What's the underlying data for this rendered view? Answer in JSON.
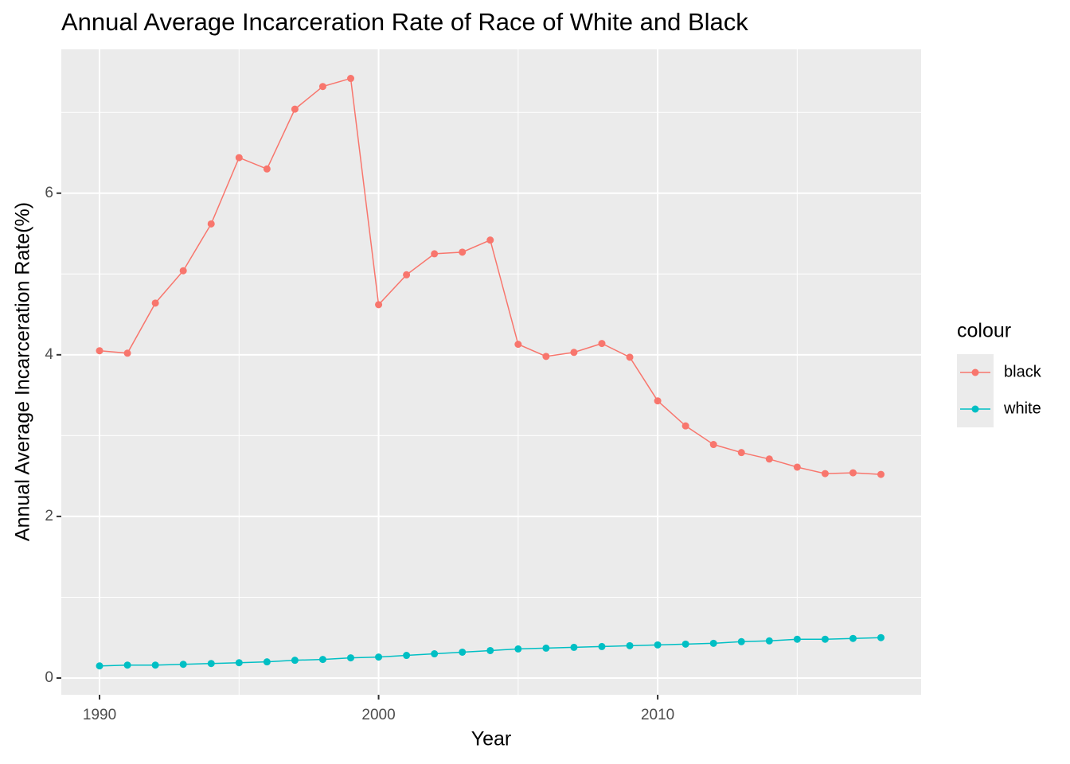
{
  "chart_data": {
    "type": "line",
    "title": "Annual Average Incarceration Rate of Race of White and Black",
    "x_label": "Year",
    "y_label": "Annual Average Incarceration Rate(%)",
    "legend_title": "colour",
    "x": [
      1990,
      1991,
      1992,
      1993,
      1994,
      1995,
      1996,
      1997,
      1998,
      1999,
      2000,
      2001,
      2002,
      2003,
      2004,
      2005,
      2006,
      2007,
      2008,
      2009,
      2010,
      2011,
      2012,
      2013,
      2014,
      2015,
      2016,
      2017,
      2018
    ],
    "series": [
      {
        "name": "black",
        "color": "#f8766d",
        "values": [
          4.05,
          4.02,
          4.64,
          5.04,
          5.62,
          6.44,
          6.3,
          7.04,
          7.32,
          7.42,
          4.62,
          4.99,
          5.25,
          5.27,
          5.42,
          4.13,
          3.98,
          4.03,
          4.14,
          3.97,
          3.43,
          3.12,
          2.89,
          2.79,
          2.71,
          2.61,
          2.53,
          2.54,
          2.52
        ]
      },
      {
        "name": "white",
        "color": "#00bfc4",
        "values": [
          0.15,
          0.16,
          0.16,
          0.17,
          0.18,
          0.19,
          0.2,
          0.22,
          0.23,
          0.25,
          0.26,
          0.28,
          0.3,
          0.32,
          0.34,
          0.36,
          0.37,
          0.38,
          0.39,
          0.4,
          0.41,
          0.42,
          0.43,
          0.45,
          0.46,
          0.48,
          0.48,
          0.49,
          0.5
        ]
      }
    ],
    "xlim": [
      1988.63,
      2019.44
    ],
    "ylim": [
      -0.207,
      7.78
    ],
    "xticks": [
      1990,
      2000,
      2010
    ],
    "yticks": [
      0,
      2,
      4,
      6
    ],
    "grid": true,
    "minor_grid": true,
    "legend": "right"
  }
}
